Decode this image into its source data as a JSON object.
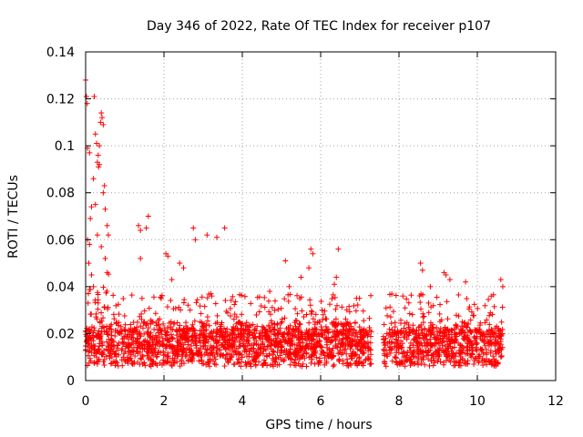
{
  "chart_data": {
    "type": "scatter",
    "title": "Day 346 of 2022, Rate Of TEC Index for receiver p107",
    "xlabel": "GPS time / hours",
    "ylabel": "ROTI / TECUs",
    "xlim": [
      0,
      12
    ],
    "ylim": [
      0,
      0.14
    ],
    "xticks": [
      0,
      2,
      4,
      6,
      8,
      10,
      12
    ],
    "xtick_labels": [
      "0",
      "2",
      "4",
      "6",
      "8",
      "10",
      "12"
    ],
    "yticks": [
      0,
      0.02,
      0.04,
      0.06,
      0.08,
      0.1,
      0.12,
      0.14
    ],
    "ytick_labels": [
      "0",
      "0.02",
      "0.04",
      "0.06",
      "0.08",
      "0.1",
      "0.12",
      "0.14"
    ],
    "grid": true,
    "marker": "+",
    "color": "#ff0000",
    "series": [
      {
        "name": "ROTI",
        "points": [
          [
            0.0,
            0.128
          ],
          [
            0.02,
            0.121
          ],
          [
            0.04,
            0.118
          ],
          [
            0.05,
            0.099
          ],
          [
            0.1,
            0.097
          ],
          [
            0.22,
            0.121
          ],
          [
            0.25,
            0.105
          ],
          [
            0.28,
            0.101
          ],
          [
            0.3,
            0.093
          ],
          [
            0.35,
            0.092
          ],
          [
            0.38,
            0.11
          ],
          [
            0.4,
            0.114
          ],
          [
            0.42,
            0.112
          ],
          [
            0.45,
            0.109
          ],
          [
            0.35,
            0.1
          ],
          [
            0.32,
            0.096
          ],
          [
            0.33,
            0.091
          ],
          [
            0.2,
            0.086
          ],
          [
            0.15,
            0.074
          ],
          [
            0.25,
            0.075
          ],
          [
            0.45,
            0.08
          ],
          [
            0.5,
            0.073
          ],
          [
            0.55,
            0.066
          ],
          [
            0.58,
            0.062
          ],
          [
            0.48,
            0.083
          ],
          [
            0.1,
            0.058
          ],
          [
            0.05,
            0.06
          ],
          [
            0.12,
            0.069
          ],
          [
            0.3,
            0.062
          ],
          [
            0.4,
            0.057
          ],
          [
            0.08,
            0.05
          ],
          [
            0.15,
            0.045
          ],
          [
            0.2,
            0.04
          ],
          [
            0.5,
            0.052
          ],
          [
            0.55,
            0.046
          ],
          [
            1.35,
            0.066
          ],
          [
            1.4,
            0.064
          ],
          [
            1.6,
            0.07
          ],
          [
            1.55,
            0.065
          ],
          [
            1.4,
            0.052
          ],
          [
            2.05,
            0.054
          ],
          [
            2.1,
            0.053
          ],
          [
            2.4,
            0.05
          ],
          [
            2.5,
            0.048
          ],
          [
            2.75,
            0.065
          ],
          [
            2.8,
            0.06
          ],
          [
            3.1,
            0.062
          ],
          [
            3.35,
            0.061
          ],
          [
            3.55,
            0.065
          ],
          [
            2.2,
            0.043
          ],
          [
            5.1,
            0.051
          ],
          [
            5.75,
            0.056
          ],
          [
            5.8,
            0.054
          ],
          [
            6.45,
            0.056
          ],
          [
            6.4,
            0.044
          ],
          [
            6.35,
            0.041
          ],
          [
            5.7,
            0.048
          ],
          [
            5.5,
            0.044
          ],
          [
            5.2,
            0.04
          ],
          [
            4.7,
            0.038
          ],
          [
            8.55,
            0.05
          ],
          [
            8.6,
            0.047
          ],
          [
            9.15,
            0.046
          ],
          [
            9.2,
            0.045
          ],
          [
            9.3,
            0.043
          ],
          [
            9.7,
            0.042
          ],
          [
            10.6,
            0.043
          ],
          [
            10.65,
            0.04
          ],
          [
            8.1,
            0.036
          ],
          [
            8.8,
            0.04
          ]
        ]
      }
    ]
  }
}
